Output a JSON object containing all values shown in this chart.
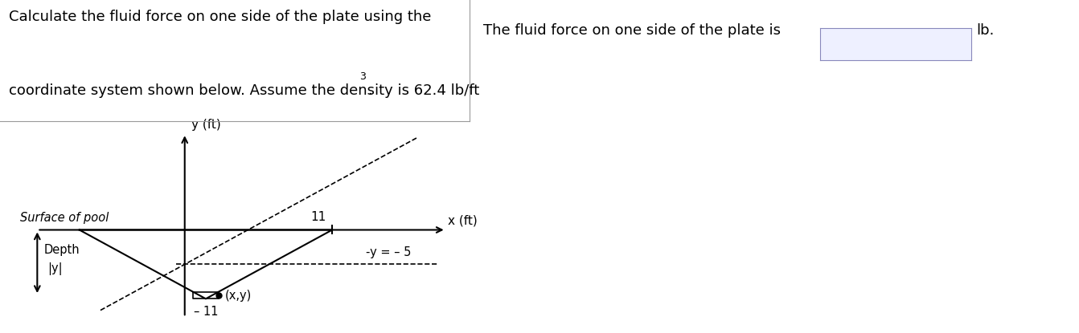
{
  "bg_color": "#ffffff",
  "text_top_left_line1": "Calculate the fluid force on one side of the plate using the",
  "text_top_left_line2": "coordinate system shown below. Assume the density is 62.4 lb/ft",
  "exponent_3": "3",
  "text_right": "The fluid force on one side of the plate is",
  "text_lb": "lb.",
  "ylabel": "y (ft)",
  "xlabel": "x (ft)",
  "label_surface": "Surface of pool",
  "label_depth": "Depth",
  "label_abs_y": "|y|",
  "label_11": "11",
  "label_neg5": "-y = – 5",
  "label_neg11": "– 11",
  "label_xy": "(x,y)",
  "font_size_main": 13,
  "font_size_axis": 11,
  "font_size_label": 10.5,
  "font_size_small": 9
}
